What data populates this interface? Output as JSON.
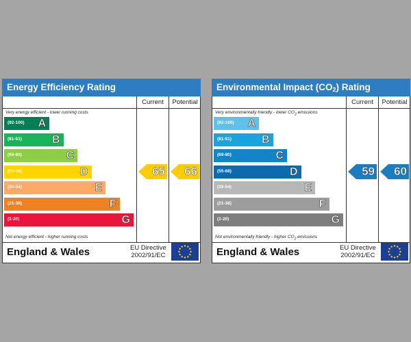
{
  "panels": [
    {
      "title": "Energy Efficiency Rating",
      "col_current": "Current",
      "col_potential": "Potential",
      "note_top": "Very energy efficient - lower running costs",
      "note_bottom": "Not energy efficient - higher running costs",
      "bands": [
        {
          "range": "(92-100)",
          "letter": "A",
          "color": "#008054"
        },
        {
          "range": "(81-91)",
          "letter": "B",
          "color": "#19b459"
        },
        {
          "range": "(69-80)",
          "letter": "C",
          "color": "#8dce46"
        },
        {
          "range": "(55-68)",
          "letter": "D",
          "color": "#ffd500"
        },
        {
          "range": "(39-54)",
          "letter": "E",
          "color": "#fcaa65"
        },
        {
          "range": "(21-38)",
          "letter": "F",
          "color": "#ef8023"
        },
        {
          "range": "(1-20)",
          "letter": "G",
          "color": "#e9153b"
        }
      ],
      "current": {
        "value": "65",
        "color": "#ffcc00"
      },
      "potential": {
        "value": "66",
        "color": "#ffcc00"
      },
      "region": "England & Wales",
      "directive_line1": "EU Directive",
      "directive_line2": "2002/91/EC"
    },
    {
      "title_main": "Environmental Impact (CO",
      "title_sub": "2",
      "title_end": ") Rating",
      "col_current": "Current",
      "col_potential": "Potential",
      "note_top_main": "Very environmentally friendly - lower CO",
      "note_top_sub": "2",
      "note_top_end": " emissions",
      "note_bottom_main": "Not environmentally friendly - higher CO",
      "note_bottom_sub": "2",
      "note_bottom_end": " emissions",
      "bands": [
        {
          "range": "(92-100)",
          "letter": "A",
          "color": "#5ec1ea"
        },
        {
          "range": "(81-91)",
          "letter": "B",
          "color": "#1ba3dd"
        },
        {
          "range": "(69-80)",
          "letter": "C",
          "color": "#1385c6"
        },
        {
          "range": "(55-68)",
          "letter": "D",
          "color": "#0c6aad"
        },
        {
          "range": "(39-54)",
          "letter": "E",
          "color": "#b7b7b7"
        },
        {
          "range": "(21-38)",
          "letter": "F",
          "color": "#9d9d9d"
        },
        {
          "range": "(1-20)",
          "letter": "G",
          "color": "#7e7e7e"
        }
      ],
      "current": {
        "value": "59",
        "color": "#1b7dc1"
      },
      "potential": {
        "value": "60",
        "color": "#1b7dc1"
      },
      "region": "England & Wales",
      "directive_line1": "EU Directive",
      "directive_line2": "2002/91/EC"
    }
  ]
}
